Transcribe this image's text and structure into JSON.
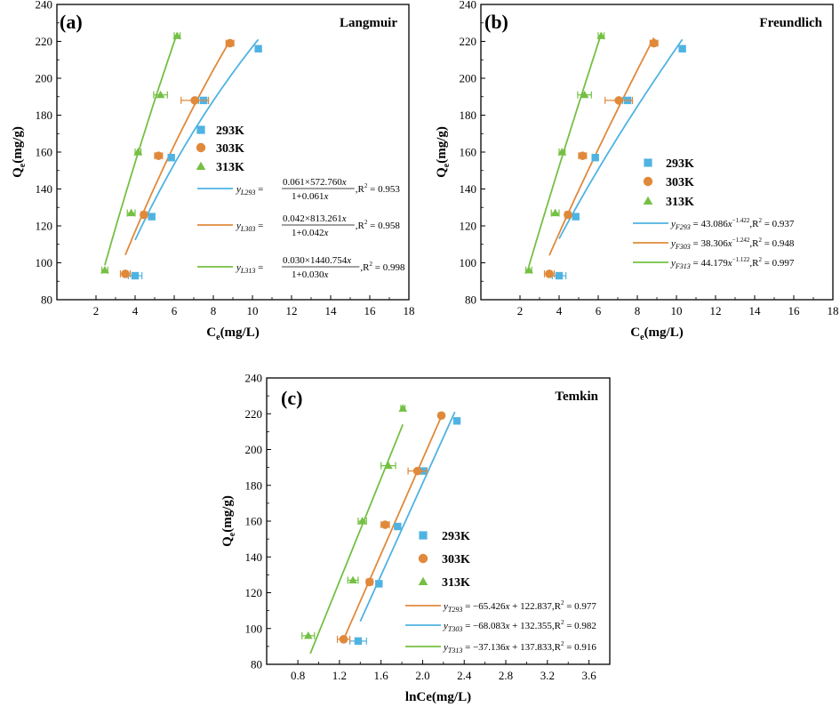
{
  "colors": {
    "k293": "#4fb3e2",
    "k303": "#e0893b",
    "k313": "#74c043"
  },
  "chart_data": [
    {
      "type": "scatter",
      "panel": "(a)",
      "title": "Langmuir",
      "xlabel_main": "C",
      "xlabel_sub": "e",
      "xlabel_rest": "(mg/L)",
      "ylabel_main": "Q",
      "ylabel_sub": "e",
      "ylabel_rest": "(mg/g)",
      "xlim": [
        0,
        18
      ],
      "ylim": [
        80,
        240
      ],
      "xticks": [
        "2",
        "4",
        "6",
        "8",
        "10",
        "12",
        "14",
        "16",
        "18"
      ],
      "yticks": [
        "80",
        "100",
        "120",
        "140",
        "160",
        "180",
        "200",
        "220",
        "240"
      ],
      "series": [
        {
          "name": "293K",
          "key": "k293",
          "marker": "square",
          "x": [
            4.0,
            4.85,
            5.85,
            7.5,
            10.3
          ],
          "y": [
            93,
            125,
            157,
            188,
            216
          ],
          "xerr": [
            0.35,
            0.15,
            0.1,
            0.25,
            0.1
          ]
        },
        {
          "name": "303K",
          "key": "k303",
          "marker": "circle",
          "x": [
            3.5,
            4.45,
            5.2,
            7.05,
            8.85
          ],
          "y": [
            94,
            126,
            158,
            188,
            219
          ],
          "xerr": [
            0.25,
            0.15,
            0.2,
            0.7,
            0.2
          ]
        },
        {
          "name": "313K",
          "key": "k313",
          "marker": "triangle",
          "x": [
            2.45,
            3.8,
            4.15,
            5.3,
            6.15
          ],
          "y": [
            96,
            127,
            160,
            191,
            223
          ],
          "xerr": [
            0.15,
            0.2,
            0.15,
            0.35,
            0.15
          ]
        }
      ],
      "fits": [
        {
          "key": "k293",
          "model": "langmuir",
          "qm": 572.76,
          "k": 0.061,
          "xrange": [
            4.0,
            10.3
          ]
        },
        {
          "key": "k303",
          "model": "langmuir",
          "qm": 813.261,
          "k": 0.042,
          "xrange": [
            3.5,
            8.85
          ]
        },
        {
          "key": "k313",
          "model": "langmuir",
          "qm": 1440.754,
          "k": 0.03,
          "xrange": [
            2.45,
            6.15
          ]
        }
      ],
      "legend_markers": [
        "293K",
        "303K",
        "313K"
      ],
      "legend_lines": [
        {
          "key": "k293",
          "y": "y",
          "sub": "L293",
          "num": "0.061×572.760",
          "den": "1+0.061",
          "r2": ",R",
          "r2val": " = 0.953"
        },
        {
          "key": "k303",
          "y": "y",
          "sub": "L303",
          "num": "0.042×813.261",
          "den": "1+0.042",
          "r2": ",R",
          "r2val": " = 0.958"
        },
        {
          "key": "k313",
          "y": "y",
          "sub": "L313",
          "num": "0.030×1440.754",
          "den": "1+0.030",
          "r2": ",R",
          "r2val": " = 0.998"
        }
      ]
    },
    {
      "type": "scatter",
      "panel": "(b)",
      "title": "Freundlich",
      "xlabel_main": "C",
      "xlabel_sub": "e",
      "xlabel_rest": "(mg/L)",
      "ylabel_main": "Q",
      "ylabel_sub": "e",
      "ylabel_rest": "(mg/g)",
      "xlim": [
        0,
        18
      ],
      "ylim": [
        80,
        240
      ],
      "xticks": [
        "2",
        "4",
        "6",
        "8",
        "10",
        "12",
        "14",
        "16",
        "18"
      ],
      "yticks": [
        "80",
        "100",
        "120",
        "140",
        "160",
        "180",
        "200",
        "220",
        "240"
      ],
      "series": [
        {
          "name": "293K",
          "key": "k293",
          "marker": "square",
          "x": [
            4.0,
            4.85,
            5.85,
            7.5,
            10.3
          ],
          "y": [
            93,
            125,
            157,
            188,
            216
          ],
          "xerr": [
            0.35,
            0.15,
            0.1,
            0.25,
            0.1
          ]
        },
        {
          "name": "303K",
          "key": "k303",
          "marker": "circle",
          "x": [
            3.5,
            4.45,
            5.2,
            7.05,
            8.85
          ],
          "y": [
            94,
            126,
            158,
            188,
            219
          ],
          "xerr": [
            0.25,
            0.15,
            0.2,
            0.7,
            0.2
          ]
        },
        {
          "name": "313K",
          "key": "k313",
          "marker": "triangle",
          "x": [
            2.45,
            3.8,
            4.15,
            5.3,
            6.15
          ],
          "y": [
            96,
            127,
            160,
            191,
            223
          ],
          "xerr": [
            0.15,
            0.2,
            0.15,
            0.35,
            0.15
          ]
        }
      ],
      "fits": [
        {
          "key": "k293",
          "model": "power",
          "points": [
            [
              4.0,
              113
            ],
            [
              10.3,
              221
            ]
          ]
        },
        {
          "key": "k303",
          "model": "power",
          "points": [
            [
              3.5,
              104
            ],
            [
              8.85,
              222
            ]
          ]
        },
        {
          "key": "k313",
          "model": "power",
          "points": [
            [
              2.45,
              98
            ],
            [
              6.15,
              224
            ]
          ]
        }
      ],
      "legend_markers": [
        "293K",
        "303K",
        "313K"
      ],
      "legend_lines": [
        {
          "key": "k293",
          "y": "y",
          "sub": "F293",
          "eq": " = 43.086",
          "var": "x",
          "exp": "−1.422",
          "r2": ",R",
          "r2val": " = 0.937"
        },
        {
          "key": "k303",
          "y": "y",
          "sub": "F303",
          "eq": " = 38.306",
          "var": "x",
          "exp": "−1.242",
          "r2": ",R",
          "r2val": " = 0.948"
        },
        {
          "key": "k313",
          "y": "y",
          "sub": "F313",
          "eq": " = 44.179",
          "var": "x",
          "exp": "−1.122",
          "r2": ",R",
          "r2val": " = 0.997"
        }
      ]
    },
    {
      "type": "scatter",
      "panel": "(c)",
      "title": "Temkin",
      "xlabel_main": "lnCe(mg/L)",
      "xlabel_sub": "",
      "xlabel_rest": "",
      "ylabel_main": "Q",
      "ylabel_sub": "e",
      "ylabel_rest": "(mg/g)",
      "xlim": [
        0.5,
        3.8
      ],
      "ylim": [
        80,
        240
      ],
      "xticks": [
        "0.8",
        "1.2",
        "1.6",
        "2.0",
        "2.4",
        "2.8",
        "3.2",
        "3.6"
      ],
      "yticks": [
        "80",
        "100",
        "120",
        "140",
        "160",
        "180",
        "200",
        "220",
        "240"
      ],
      "series": [
        {
          "name": "293K",
          "key": "k293",
          "marker": "square",
          "x": [
            1.38,
            1.58,
            1.76,
            2.01,
            2.33
          ],
          "y": [
            93,
            125,
            157,
            188,
            216
          ],
          "xerr": [
            0.08,
            0.03,
            0.02,
            0.03,
            0.01
          ]
        },
        {
          "name": "303K",
          "key": "k303",
          "marker": "circle",
          "x": [
            1.24,
            1.49,
            1.64,
            1.95,
            2.18
          ],
          "y": [
            94,
            126,
            158,
            188,
            219
          ],
          "xerr": [
            0.06,
            0.03,
            0.04,
            0.09,
            0.02
          ]
        },
        {
          "name": "313K",
          "key": "k313",
          "marker": "triangle",
          "x": [
            0.9,
            1.33,
            1.42,
            1.67,
            1.81
          ],
          "y": [
            96,
            127,
            160,
            191,
            223
          ],
          "xerr": [
            0.06,
            0.05,
            0.04,
            0.07,
            0.02
          ]
        }
      ],
      "fits": [
        {
          "key": "k293",
          "model": "linear",
          "points": [
            [
              1.4,
              104
            ],
            [
              2.31,
              221
            ]
          ]
        },
        {
          "key": "k303",
          "model": "linear",
          "points": [
            [
              1.24,
              94
            ],
            [
              2.2,
              221
            ]
          ]
        },
        {
          "key": "k313",
          "model": "linear",
          "points": [
            [
              0.92,
              86
            ],
            [
              1.81,
              214
            ]
          ]
        }
      ],
      "legend_markers": [
        "293K",
        "303K",
        "313K"
      ],
      "legend_lines": [
        {
          "key": "k303",
          "y": "y",
          "sub": "T293",
          "eq": " = −65.426",
          "var": "x",
          "tail": " + 122.837",
          "r2": ",R",
          "r2val": " = 0.977"
        },
        {
          "key": "k293",
          "y": "y",
          "sub": "T303",
          "eq": " = −68.083",
          "var": "x",
          "tail": " + 132.355",
          "r2": ",R",
          "r2val": " = 0.982"
        },
        {
          "key": "k313",
          "y": "y",
          "sub": "T313",
          "eq": " = −37.136",
          "var": "x",
          "tail": " + 137.833",
          "r2": ",R",
          "r2val": " = 0.916"
        }
      ]
    }
  ]
}
